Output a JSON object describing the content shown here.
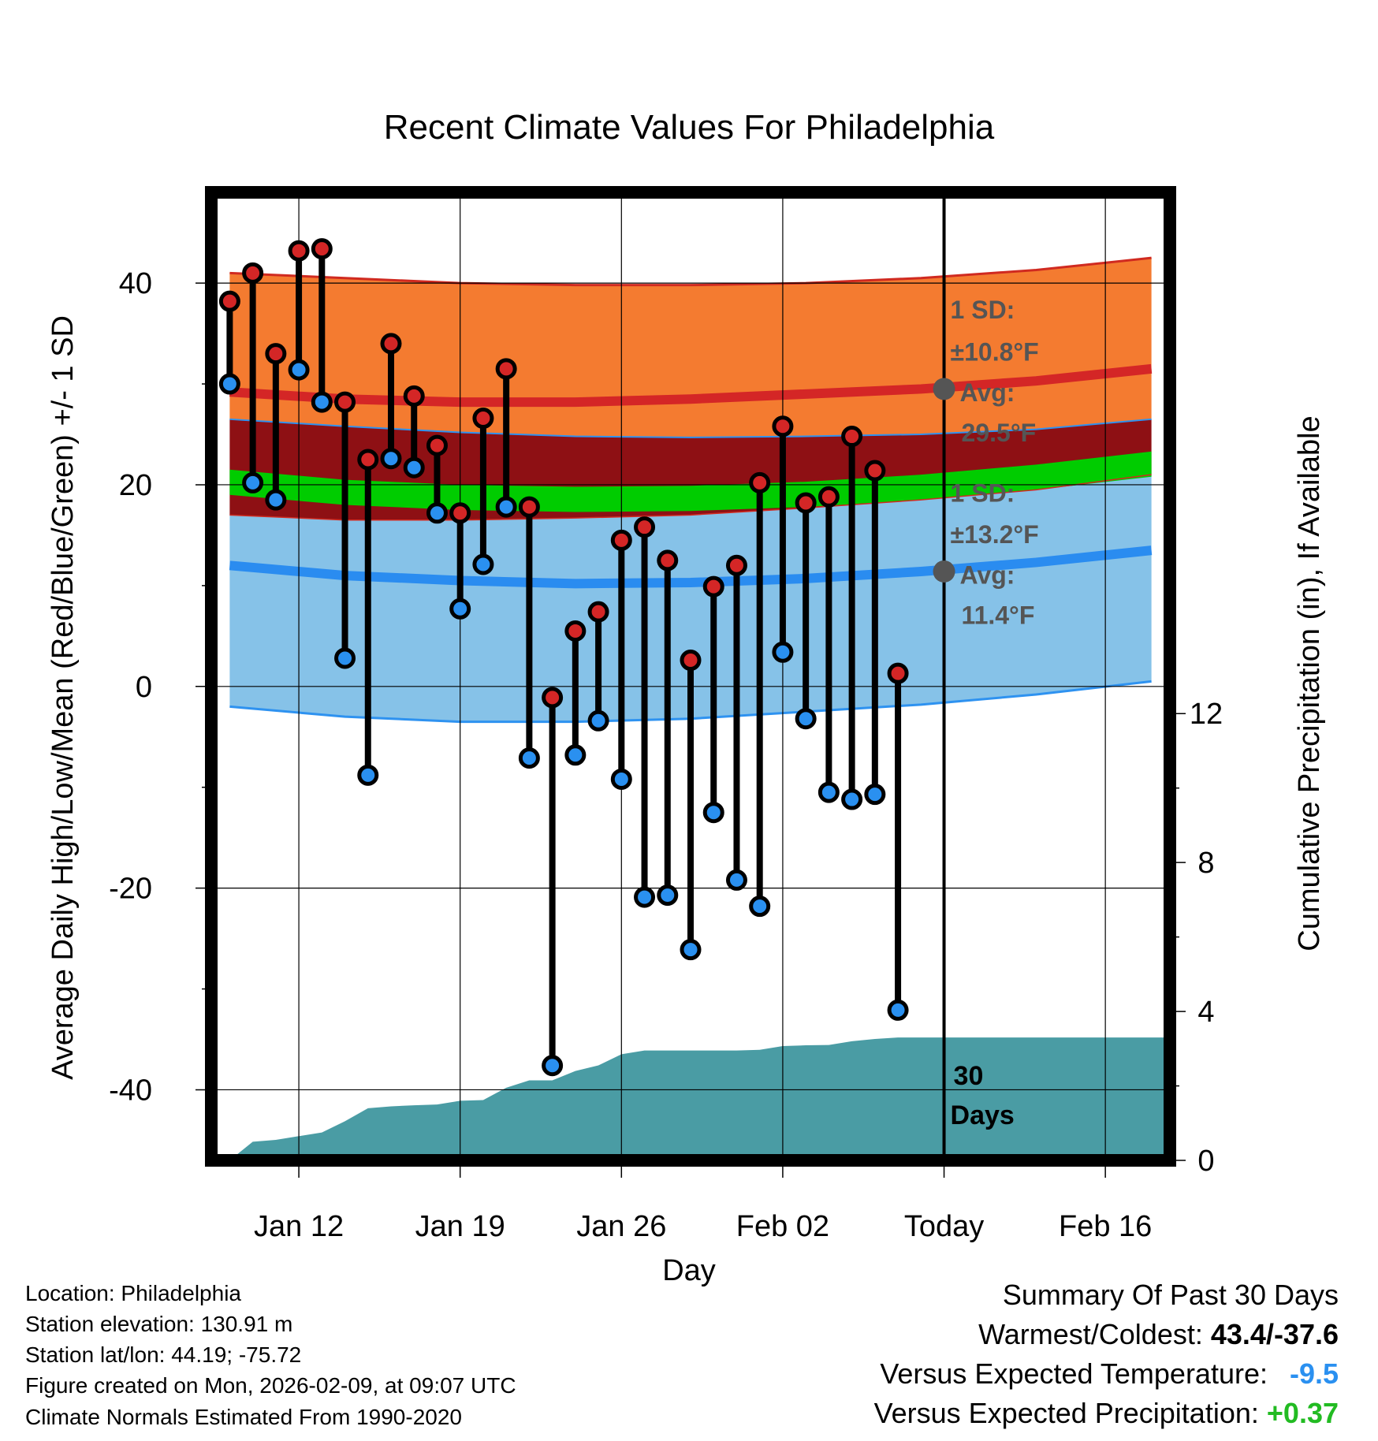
{
  "chart_data": {
    "type": "line",
    "title": "Recent Climate Values For Philadelphia",
    "xlabel": "Day",
    "ylabel": "Average Daily High/Low/Mean (Red/Blue/Green) +/- 1 SD",
    "ylabel_right": "Cumulative Precipitation (in), If Available",
    "ylim": [
      -47,
      49
    ],
    "ylim_right": [
      0,
      26
    ],
    "xlim": [
      -0.8,
      40.8
    ],
    "y_ticks": [
      "40",
      "20",
      "0",
      "-20",
      "-40"
    ],
    "y_tick_values": [
      40,
      20,
      0,
      -20,
      -40
    ],
    "y_right_ticks": [
      "12",
      "8",
      "4",
      "0"
    ],
    "y_right_tick_values": [
      12,
      8,
      4,
      0
    ],
    "x_ticks": [
      "Jan 12",
      "Jan 19",
      "Jan 26",
      "Feb 02",
      "Today",
      "Feb 16"
    ],
    "x_tick_values": [
      3,
      10,
      17,
      24,
      31,
      38
    ],
    "today_index": 31,
    "normals": {
      "x": [
        0,
        5,
        10,
        15,
        20,
        25,
        30,
        35,
        40
      ],
      "high_avg": [
        29.2,
        28.5,
        28.2,
        28.2,
        28.5,
        29.0,
        29.5,
        30.3,
        31.5
      ],
      "high_upper": [
        41.0,
        40.5,
        40.0,
        39.8,
        39.8,
        40.0,
        40.5,
        41.3,
        42.5
      ],
      "high_lower": [
        26.5,
        25.8,
        25.2,
        24.8,
        24.7,
        24.8,
        25.0,
        25.5,
        26.5
      ],
      "mean_upper": [
        21.5,
        20.5,
        20.0,
        19.8,
        19.9,
        20.3,
        21.0,
        22.0,
        23.3
      ],
      "mean_lower": [
        19.0,
        18.0,
        17.5,
        17.3,
        17.4,
        17.8,
        18.5,
        19.5,
        20.8
      ],
      "low_avg": [
        12.0,
        11.0,
        10.5,
        10.2,
        10.3,
        10.7,
        11.4,
        12.3,
        13.5
      ],
      "low_upper": [
        17.0,
        16.5,
        16.5,
        16.7,
        17.0,
        17.7,
        18.5,
        19.5,
        21.0
      ],
      "low_lower": [
        -2.0,
        -3.0,
        -3.5,
        -3.5,
        -3.2,
        -2.5,
        -1.8,
        -0.8,
        0.5
      ]
    },
    "series": [
      {
        "name": "High",
        "color": "#dc2020",
        "x": [
          0,
          1,
          2,
          3,
          4,
          5,
          6,
          7,
          8,
          9,
          10,
          11,
          12,
          13,
          14,
          15,
          16,
          17,
          18,
          19,
          20,
          21,
          22,
          23,
          24,
          25,
          26,
          27,
          28,
          29,
          30
        ],
        "values": [
          38.2,
          41.0,
          33.0,
          43.2,
          43.4,
          28.2,
          22.5,
          34.0,
          28.8,
          23.9,
          17.2,
          26.6,
          31.5,
          17.8,
          -1.1,
          5.5,
          7.4,
          14.5,
          15.8,
          12.5,
          2.6,
          9.9,
          12.0,
          20.2,
          25.8,
          18.2,
          18.8,
          24.8,
          21.4,
          1.3,
          null
        ]
      },
      {
        "name": "Low",
        "color": "#2090f0",
        "x": [
          0,
          1,
          2,
          3,
          4,
          5,
          6,
          7,
          8,
          9,
          10,
          11,
          12,
          13,
          14,
          15,
          16,
          17,
          18,
          19,
          20,
          21,
          22,
          23,
          24,
          25,
          26,
          27,
          28,
          29,
          30
        ],
        "values": [
          30.0,
          20.2,
          18.5,
          31.4,
          28.2,
          2.8,
          -8.8,
          22.6,
          21.7,
          17.2,
          7.7,
          12.1,
          17.8,
          -7.1,
          -37.6,
          -6.8,
          -3.4,
          -9.2,
          -20.9,
          -20.7,
          -26.1,
          -12.5,
          -19.2,
          -21.8,
          3.4,
          -3.2,
          -10.5,
          -11.2,
          -10.7,
          -32.1,
          null
        ]
      },
      {
        "name": "Cumulative Precipitation",
        "color": "#4a9ca4",
        "x": [
          0,
          1,
          2,
          3,
          4,
          5,
          6,
          7,
          8,
          9,
          10,
          11,
          12,
          13,
          14,
          15,
          16,
          17,
          18,
          19,
          20,
          21,
          22,
          23,
          24,
          25,
          26,
          27,
          28,
          29,
          30,
          31,
          40.8
        ],
        "values": [
          0.0,
          0.5,
          0.55,
          0.65,
          0.75,
          1.05,
          1.4,
          1.45,
          1.48,
          1.5,
          1.6,
          1.62,
          1.95,
          2.15,
          2.15,
          2.4,
          2.55,
          2.85,
          2.95,
          2.95,
          2.95,
          2.95,
          2.95,
          2.97,
          3.07,
          3.09,
          3.1,
          3.2,
          3.26,
          3.3,
          3.3,
          3.3,
          3.3
        ]
      }
    ],
    "annotations": {
      "high_sd": "1 SD:",
      "high_sd_value": "±10.8°F",
      "high_avg_label": "Avg:",
      "high_avg_value": "29.5°F",
      "low_sd": "1 SD:",
      "low_sd_value": "±13.2°F",
      "low_avg_label": "Avg:",
      "low_avg_value": "11.4°F",
      "high_avg_today": 29.5,
      "low_avg_today": 11.4,
      "days_number": "30",
      "days_word": "Days"
    }
  },
  "colors": {
    "high_band": "#f47b30",
    "high_edge": "#d02a20",
    "high_avg_line": "#d42626",
    "mean_outer": "#8e1014",
    "mean_band": "#00cc00",
    "low_band": "#86c2e8",
    "low_edge": "#2e92f0",
    "low_avg_line": "#2a8cf0",
    "precip": "#4a9ca4",
    "high_dot": "#d42626",
    "low_dot": "#2a90f0",
    "today_dot": "#555555",
    "warm_value": "#000000",
    "temp_anomaly": "#2a90f0",
    "precip_anomaly": "#22bb22"
  },
  "footer": {
    "location": "Location: Philadelphia",
    "elevation": "Station elevation: 130.91 m",
    "latlon": "Station lat/lon: 44.19; -75.72",
    "created": "Figure created on Mon, 2026-02-09, at 09:07 UTC",
    "normals": "Climate Normals Estimated From 1990-2020"
  },
  "summary": {
    "title": "Summary Of Past 30 Days",
    "warmest_label": "Warmest/Coldest:",
    "warmest_value": "43.4/-37.6",
    "temp_label": "Versus Expected Temperature:",
    "temp_value": "-9.5",
    "precip_label": "Versus Expected Precipitation:",
    "precip_value": "+0.37"
  }
}
